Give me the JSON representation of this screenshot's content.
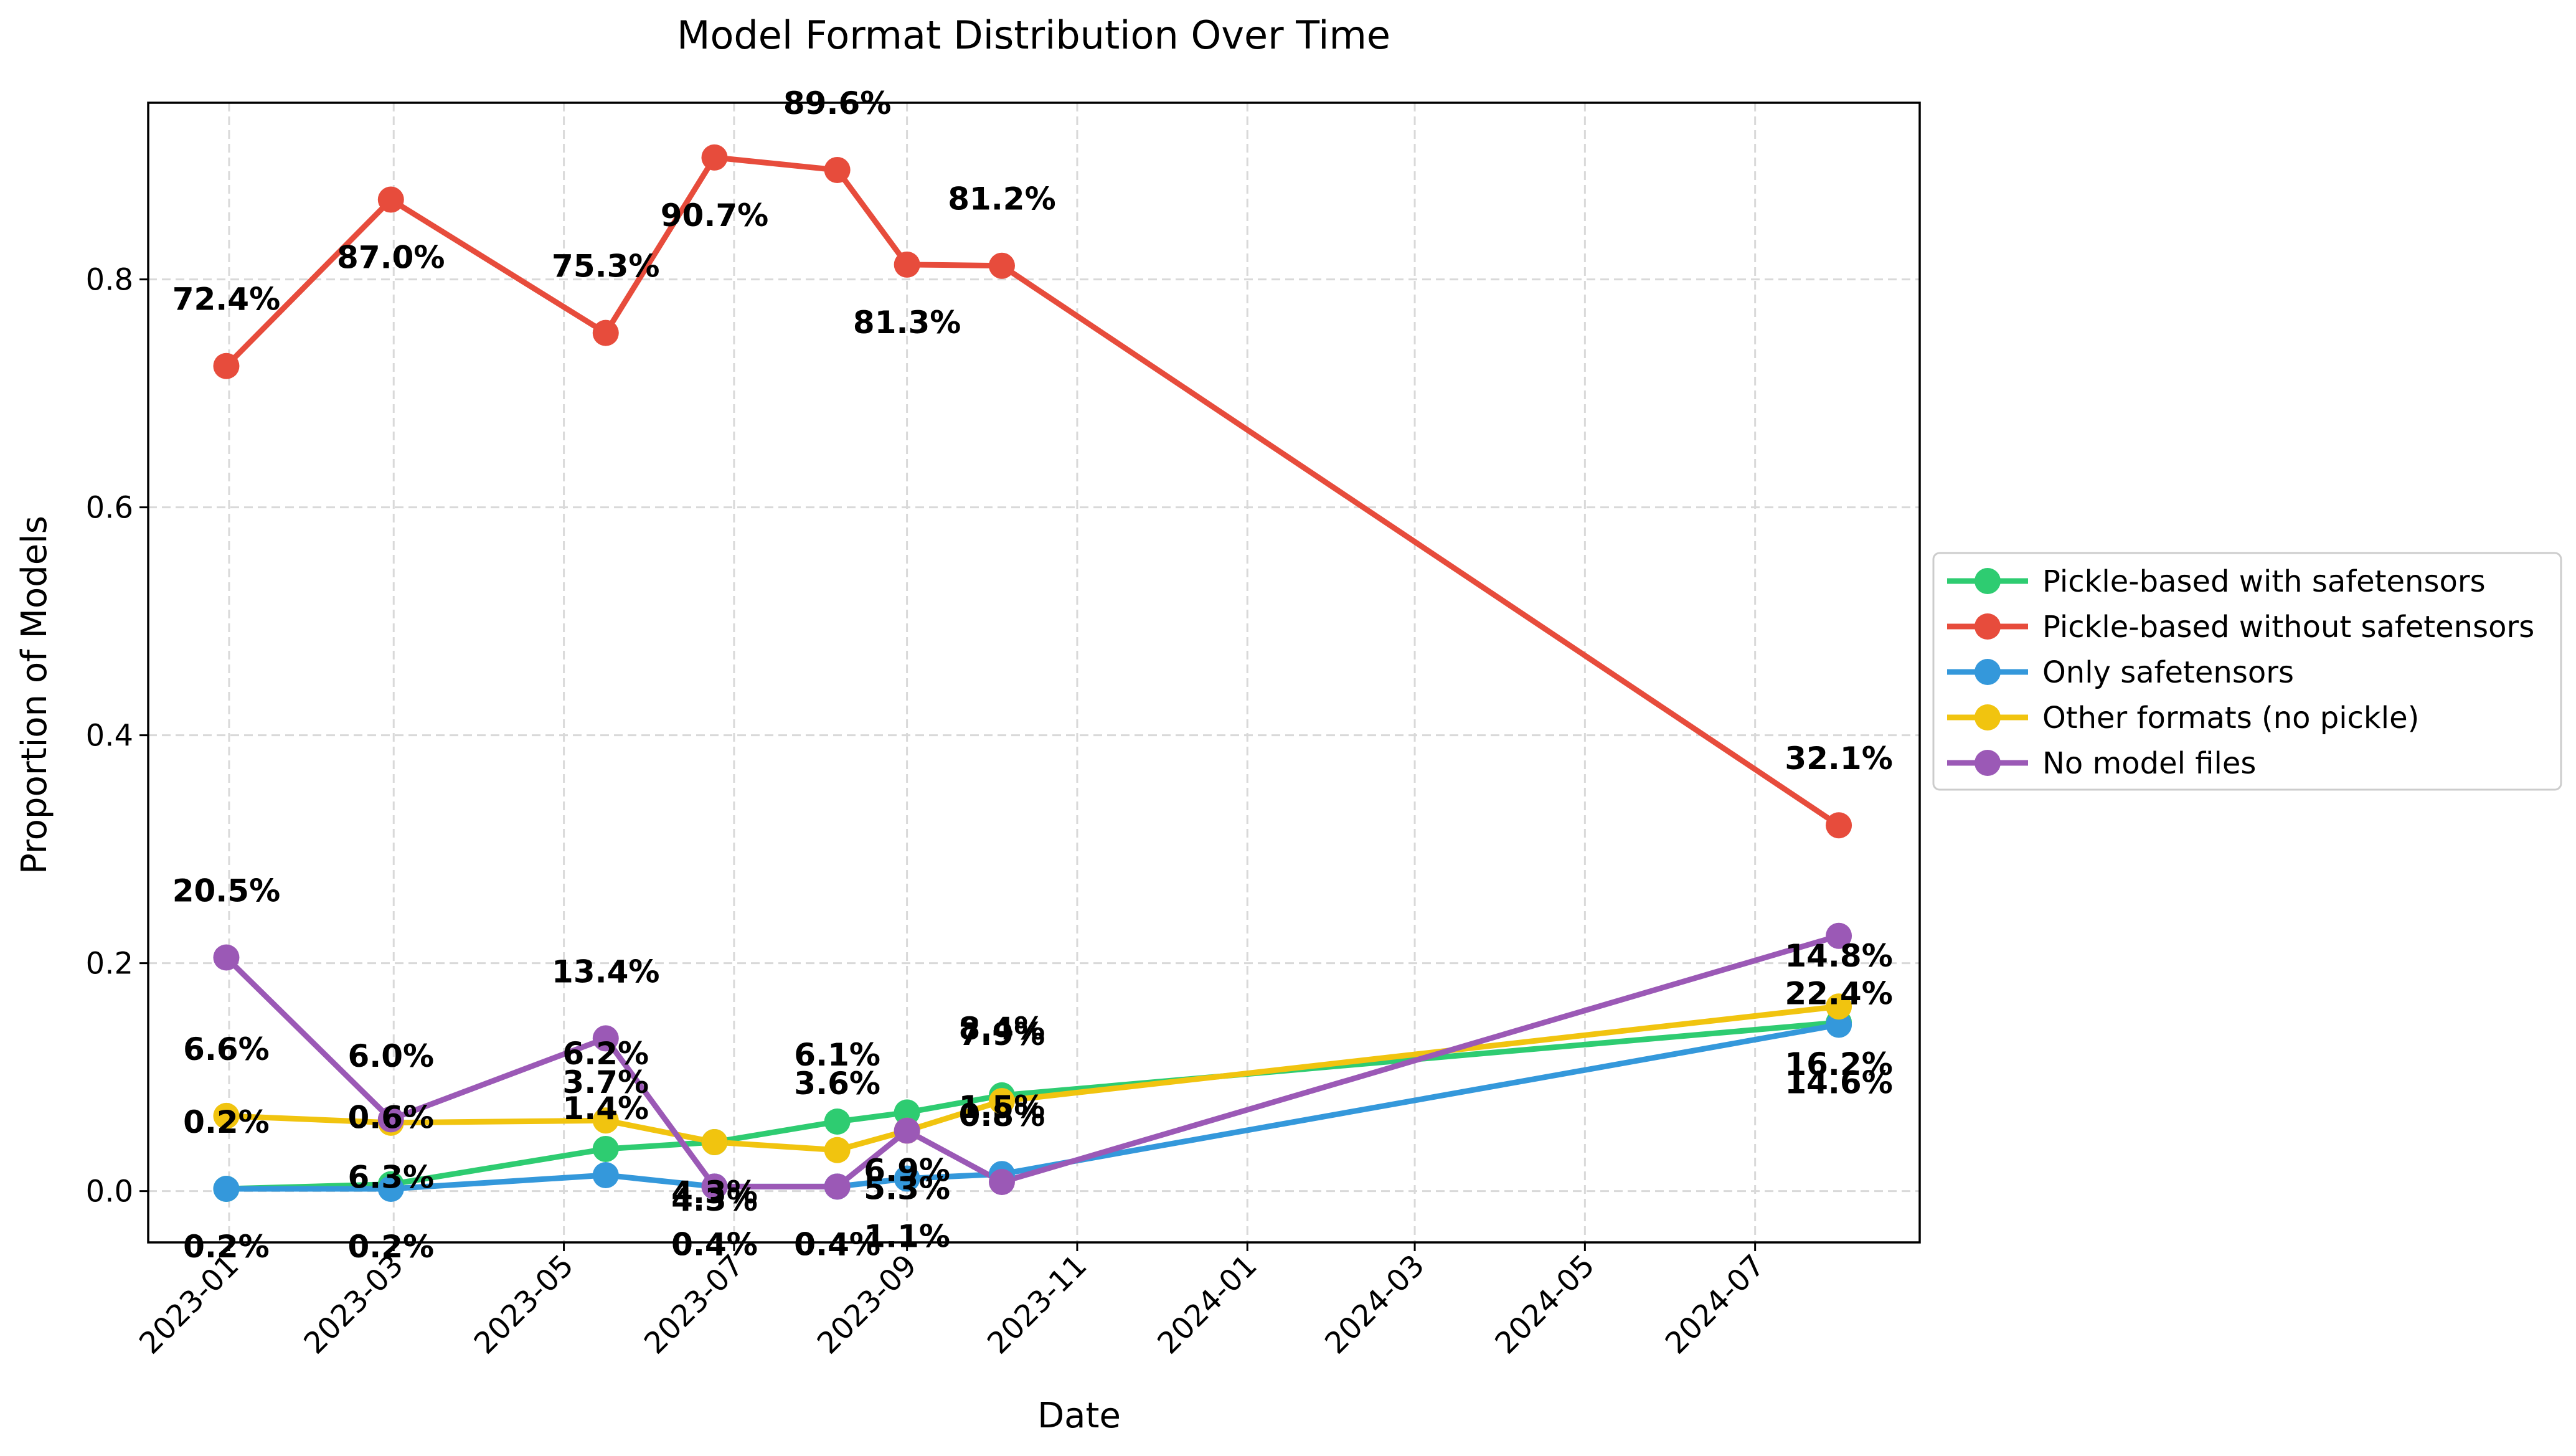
{
  "chart_data": {
    "type": "line",
    "title": "Model Format Distribution Over Time",
    "xlabel": "Date",
    "ylabel": "Proportion of Models",
    "x": [
      "2022-12-31",
      "2023-02-28",
      "2023-05-16",
      "2023-06-24",
      "2023-08-07",
      "2023-09-01",
      "2023-10-05",
      "2024-07-31"
    ],
    "xlim": [
      "2022-12-03",
      "2024-08-29"
    ],
    "ylim": [
      -0.045,
      0.955
    ],
    "xticks": [
      "2023-01",
      "2023-03",
      "2023-05",
      "2023-07",
      "2023-09",
      "2023-11",
      "2024-01",
      "2024-03",
      "2024-05",
      "2024-07"
    ],
    "yticks": [
      "0.0",
      "0.2",
      "0.4",
      "0.6",
      "0.8"
    ],
    "grid": true,
    "legend_position": "outside-right",
    "series": [
      {
        "name": "Pickle-based with safetensors",
        "color": "#2ecc71",
        "values": [
          0.002,
          0.006,
          0.037,
          0.043,
          0.061,
          0.069,
          0.084,
          0.148
        ],
        "labels": [
          "0.2%",
          "0.6%",
          "3.7%",
          "4.3%",
          "6.1%",
          "6.9%",
          "8.4%",
          "14.8%"
        ]
      },
      {
        "name": "Pickle-based without safetensors",
        "color": "#e74c3c",
        "values": [
          0.724,
          0.87,
          0.753,
          0.907,
          0.896,
          0.813,
          0.812,
          0.321
        ],
        "labels": [
          "72.4%",
          "87.0%",
          "75.3%",
          "90.7%",
          "89.6%",
          "81.3%",
          "81.2%",
          "32.1%"
        ]
      },
      {
        "name": "Only safetensors",
        "color": "#3498db",
        "values": [
          0.002,
          0.002,
          0.014,
          0.004,
          0.004,
          0.011,
          0.015,
          0.146
        ],
        "labels": [
          "0.2%",
          "0.2%",
          "1.4%",
          "0.4%",
          "0.4%",
          "1.1%",
          "1.5%",
          "14.6%"
        ]
      },
      {
        "name": "Other formats (no pickle)",
        "color": "#f1c40f",
        "values": [
          0.066,
          0.06,
          0.062,
          0.043,
          0.036,
          0.053,
          0.079,
          0.162
        ],
        "labels": [
          "6.6%",
          "6.0%",
          "6.2%",
          "4.3%",
          "3.6%",
          "5.3%",
          "7.9%",
          "16.2%"
        ]
      },
      {
        "name": "No model files",
        "color": "#9b59b6",
        "values": [
          0.205,
          0.063,
          0.134,
          0.004,
          0.004,
          0.053,
          0.008,
          0.224
        ],
        "labels": [
          "20.5%",
          "6.3%",
          "13.4%",
          "0.4%",
          "0.4%",
          "5.3%",
          "0.8%",
          "22.4%"
        ]
      }
    ]
  }
}
